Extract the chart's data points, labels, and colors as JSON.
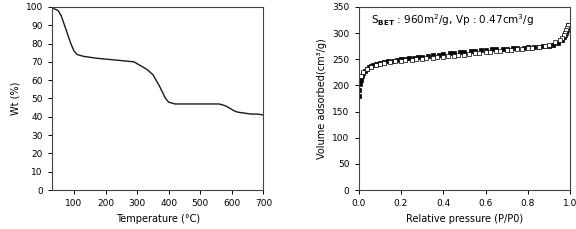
{
  "tga": {
    "x": [
      30,
      50,
      60,
      70,
      80,
      90,
      100,
      110,
      120,
      130,
      150,
      170,
      200,
      230,
      260,
      290,
      310,
      330,
      350,
      370,
      390,
      400,
      410,
      420,
      430,
      450,
      470,
      500,
      530,
      560,
      580,
      590,
      600,
      610,
      620,
      640,
      660,
      680,
      700
    ],
    "y": [
      99.5,
      98,
      95,
      90,
      85,
      80,
      76,
      74,
      73.5,
      73,
      72.5,
      72,
      71.5,
      71,
      70.5,
      70,
      68,
      66,
      63,
      57,
      50,
      48,
      47.5,
      47,
      47,
      47,
      47,
      47,
      47,
      47,
      46,
      45,
      44,
      43,
      42.5,
      42,
      41.5,
      41.5,
      41
    ],
    "xlabel": "Temperature (°C)",
    "ylabel": "Wt (%)",
    "xlim": [
      30,
      700
    ],
    "ylim": [
      0,
      100
    ],
    "xticks": [
      100,
      200,
      300,
      400,
      500,
      600,
      700
    ],
    "yticks": [
      0,
      10,
      20,
      30,
      40,
      50,
      60,
      70,
      80,
      90,
      100
    ]
  },
  "bet": {
    "adsorption_x": [
      0.001,
      0.003,
      0.006,
      0.01,
      0.015,
      0.02,
      0.03,
      0.04,
      0.05,
      0.06,
      0.07,
      0.08,
      0.09,
      0.1,
      0.12,
      0.14,
      0.16,
      0.18,
      0.2,
      0.22,
      0.24,
      0.26,
      0.28,
      0.3,
      0.33,
      0.35,
      0.38,
      0.4,
      0.43,
      0.45,
      0.48,
      0.5,
      0.53,
      0.55,
      0.58,
      0.6,
      0.63,
      0.65,
      0.68,
      0.7,
      0.73,
      0.75,
      0.78,
      0.8,
      0.83,
      0.85,
      0.87,
      0.9,
      0.92,
      0.94,
      0.96,
      0.97,
      0.975,
      0.98,
      0.985,
      0.99
    ],
    "adsorption_y": [
      180,
      192,
      202,
      210,
      218,
      223,
      228,
      232,
      235,
      237,
      239,
      240,
      241,
      242,
      244,
      246,
      247,
      248,
      250,
      251,
      252,
      253,
      254,
      255,
      257,
      258,
      259,
      260,
      261,
      262,
      263,
      264,
      265,
      266,
      267,
      268,
      269,
      269,
      270,
      270,
      271,
      272,
      272,
      273,
      274,
      274,
      275,
      276,
      278,
      281,
      287,
      292,
      296,
      300,
      306,
      315
    ],
    "desorption_x": [
      0.99,
      0.985,
      0.98,
      0.975,
      0.97,
      0.96,
      0.95,
      0.93,
      0.9,
      0.88,
      0.85,
      0.82,
      0.8,
      0.77,
      0.75,
      0.72,
      0.7,
      0.67,
      0.65,
      0.62,
      0.6,
      0.57,
      0.55,
      0.52,
      0.5,
      0.47,
      0.45,
      0.42,
      0.4,
      0.37,
      0.35,
      0.32,
      0.3,
      0.27,
      0.25,
      0.22,
      0.2,
      0.17,
      0.15,
      0.12,
      0.1,
      0.08,
      0.06,
      0.04,
      0.02,
      0.01
    ],
    "desorption_y": [
      315,
      310,
      305,
      300,
      296,
      291,
      287,
      282,
      277,
      275,
      273,
      272,
      271,
      270,
      269,
      268,
      267,
      266,
      265,
      264,
      263,
      262,
      261,
      260,
      259,
      258,
      257,
      256,
      255,
      254,
      253,
      252,
      251,
      250,
      249,
      248,
      247,
      246,
      245,
      243,
      241,
      239,
      236,
      232,
      226,
      218
    ],
    "xlabel": "Relative pressure (P/P0)",
    "ylabel": "Volume adsorbed(cm³/g)",
    "xlim": [
      0.0,
      1.0
    ],
    "ylim": [
      0,
      350
    ],
    "xticks": [
      0.0,
      0.2,
      0.4,
      0.6,
      0.8,
      1.0
    ],
    "yticks": [
      0,
      50,
      100,
      150,
      200,
      250,
      300,
      350
    ],
    "annotation_main": "S",
    "annotation_sub": "BET",
    "annotation_rest": " : 960m$^2$/g, Vp : 0.47cm$^3$/g"
  },
  "line_color": "#1a1a1a",
  "bg_color": "#ffffff"
}
